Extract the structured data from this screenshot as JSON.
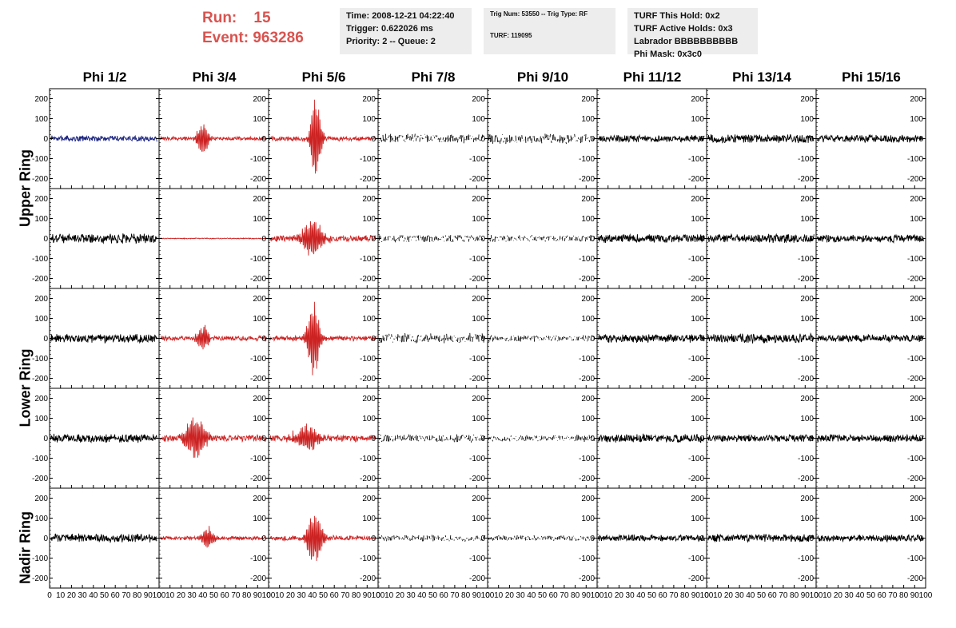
{
  "header": {
    "run_label": "Run:",
    "run_value": "15",
    "event_label": "Event:",
    "event_value": "963286"
  },
  "info_time": {
    "time": "Time: 2008-12-21 04:22:40",
    "trigger": "Trigger: 0.622026 ms",
    "priority": "Priority: 2 -- Queue: 2"
  },
  "info_trig": {
    "trig": "Trig Num: 53550 -- Trig Type: RF",
    "turf": "TURF: 119095"
  },
  "info_turf": {
    "hold": "TURF This Hold: 0x2",
    "active": "TURF Active Holds: 0x3",
    "labrador": "Labrador BBBBBBBBBB",
    "mask": "Phi Mask: 0x3c0"
  },
  "columns": [
    "Phi 1/2",
    "Phi 3/4",
    "Phi 5/6",
    "Phi 7/8",
    "Phi 9/10",
    "Phi 11/12",
    "Phi 13/14",
    "Phi 15/16"
  ],
  "ring_labels": {
    "upper": "Upper Ring",
    "lower": "Lower Ring",
    "nadir": "Nadir Ring"
  },
  "colors": {
    "normal": "#000000",
    "triggered": "#cc2222",
    "special": "#1a237e",
    "header_red": "#d9534f",
    "info_bg": "#ededed"
  },
  "chart_data": {
    "type": "line",
    "rows": 5,
    "cols": 8,
    "xlim": [
      0,
      100
    ],
    "ylim": [
      -250,
      250
    ],
    "x_ticks": [
      0,
      10,
      20,
      30,
      40,
      50,
      60,
      70,
      80,
      90,
      100
    ],
    "y_ticks": [
      -200,
      -100,
      0,
      100,
      200
    ],
    "x_tick_labels": [
      "0",
      "10",
      "20",
      "30",
      "40",
      "50",
      "60",
      "70",
      "80",
      "90",
      "100"
    ],
    "y_tick_labels": [
      "-200",
      "-100",
      "0",
      "100",
      "200"
    ],
    "panels": [
      [
        {
          "color": "special",
          "noise": 12,
          "peak": 0,
          "center": 45,
          "width": 8,
          "dashed": false
        },
        {
          "color": "triggered",
          "noise": 8,
          "peak": 85,
          "center": 40,
          "width": 6,
          "dashed": false
        },
        {
          "color": "triggered",
          "noise": 10,
          "peak": 260,
          "center": 43,
          "width": 5,
          "dashed": false
        },
        {
          "color": "normal",
          "noise": 20,
          "peak": 0,
          "center": 45,
          "width": 8,
          "dashed": true
        },
        {
          "color": "normal",
          "noise": 22,
          "peak": 0,
          "center": 45,
          "width": 8,
          "dashed": true
        },
        {
          "color": "normal",
          "noise": 14,
          "peak": 0,
          "center": 45,
          "width": 8,
          "dashed": false
        },
        {
          "color": "normal",
          "noise": 18,
          "peak": 0,
          "center": 45,
          "width": 8,
          "dashed": false
        },
        {
          "color": "normal",
          "noise": 16,
          "peak": 0,
          "center": 45,
          "width": 8,
          "dashed": false
        }
      ],
      [
        {
          "color": "normal",
          "noise": 20,
          "peak": 0,
          "center": 45,
          "width": 8,
          "dashed": false
        },
        {
          "color": "triggered",
          "noise": 2,
          "peak": 0,
          "center": 45,
          "width": 8,
          "dashed": false
        },
        {
          "color": "triggered",
          "noise": 14,
          "peak": 110,
          "center": 40,
          "width": 10,
          "dashed": false
        },
        {
          "color": "normal",
          "noise": 16,
          "peak": 0,
          "center": 45,
          "width": 8,
          "dashed": true
        },
        {
          "color": "normal",
          "noise": 14,
          "peak": 0,
          "center": 45,
          "width": 8,
          "dashed": true
        },
        {
          "color": "normal",
          "noise": 18,
          "peak": 0,
          "center": 45,
          "width": 8,
          "dashed": false
        },
        {
          "color": "normal",
          "noise": 18,
          "peak": 0,
          "center": 45,
          "width": 8,
          "dashed": false
        },
        {
          "color": "normal",
          "noise": 16,
          "peak": 0,
          "center": 45,
          "width": 8,
          "dashed": false
        }
      ],
      [
        {
          "color": "normal",
          "noise": 18,
          "peak": 0,
          "center": 45,
          "width": 8,
          "dashed": false
        },
        {
          "color": "triggered",
          "noise": 10,
          "peak": 70,
          "center": 40,
          "width": 6,
          "dashed": false
        },
        {
          "color": "triggered",
          "noise": 10,
          "peak": 200,
          "center": 41,
          "width": 6,
          "dashed": false
        },
        {
          "color": "normal",
          "noise": 22,
          "peak": 0,
          "center": 45,
          "width": 8,
          "dashed": true
        },
        {
          "color": "normal",
          "noise": 14,
          "peak": 0,
          "center": 45,
          "width": 8,
          "dashed": true
        },
        {
          "color": "normal",
          "noise": 18,
          "peak": 0,
          "center": 45,
          "width": 8,
          "dashed": false
        },
        {
          "color": "normal",
          "noise": 20,
          "peak": 0,
          "center": 45,
          "width": 8,
          "dashed": false
        },
        {
          "color": "normal",
          "noise": 16,
          "peak": 0,
          "center": 45,
          "width": 8,
          "dashed": false
        }
      ],
      [
        {
          "color": "normal",
          "noise": 18,
          "peak": 0,
          "center": 45,
          "width": 8,
          "dashed": false
        },
        {
          "color": "triggered",
          "noise": 14,
          "peak": 120,
          "center": 33,
          "width": 10,
          "dashed": false
        },
        {
          "color": "triggered",
          "noise": 14,
          "peak": 70,
          "center": 35,
          "width": 12,
          "dashed": false
        },
        {
          "color": "normal",
          "noise": 18,
          "peak": 0,
          "center": 45,
          "width": 8,
          "dashed": true
        },
        {
          "color": "normal",
          "noise": 14,
          "peak": 0,
          "center": 45,
          "width": 8,
          "dashed": true
        },
        {
          "color": "normal",
          "noise": 18,
          "peak": 0,
          "center": 45,
          "width": 8,
          "dashed": false
        },
        {
          "color": "normal",
          "noise": 16,
          "peak": 0,
          "center": 45,
          "width": 8,
          "dashed": false
        },
        {
          "color": "normal",
          "noise": 16,
          "peak": 0,
          "center": 45,
          "width": 8,
          "dashed": false
        }
      ],
      [
        {
          "color": "normal",
          "noise": 18,
          "peak": 0,
          "center": 45,
          "width": 8,
          "dashed": false
        },
        {
          "color": "triggered",
          "noise": 8,
          "peak": 60,
          "center": 45,
          "width": 6,
          "dashed": false
        },
        {
          "color": "triggered",
          "noise": 10,
          "peak": 160,
          "center": 42,
          "width": 7,
          "dashed": false
        },
        {
          "color": "normal",
          "noise": 14,
          "peak": 0,
          "center": 45,
          "width": 8,
          "dashed": true
        },
        {
          "color": "normal",
          "noise": 12,
          "peak": 0,
          "center": 45,
          "width": 8,
          "dashed": true
        },
        {
          "color": "normal",
          "noise": 14,
          "peak": 0,
          "center": 45,
          "width": 8,
          "dashed": false
        },
        {
          "color": "normal",
          "noise": 16,
          "peak": 0,
          "center": 45,
          "width": 8,
          "dashed": false
        },
        {
          "color": "normal",
          "noise": 14,
          "peak": 0,
          "center": 45,
          "width": 8,
          "dashed": false
        }
      ]
    ]
  }
}
